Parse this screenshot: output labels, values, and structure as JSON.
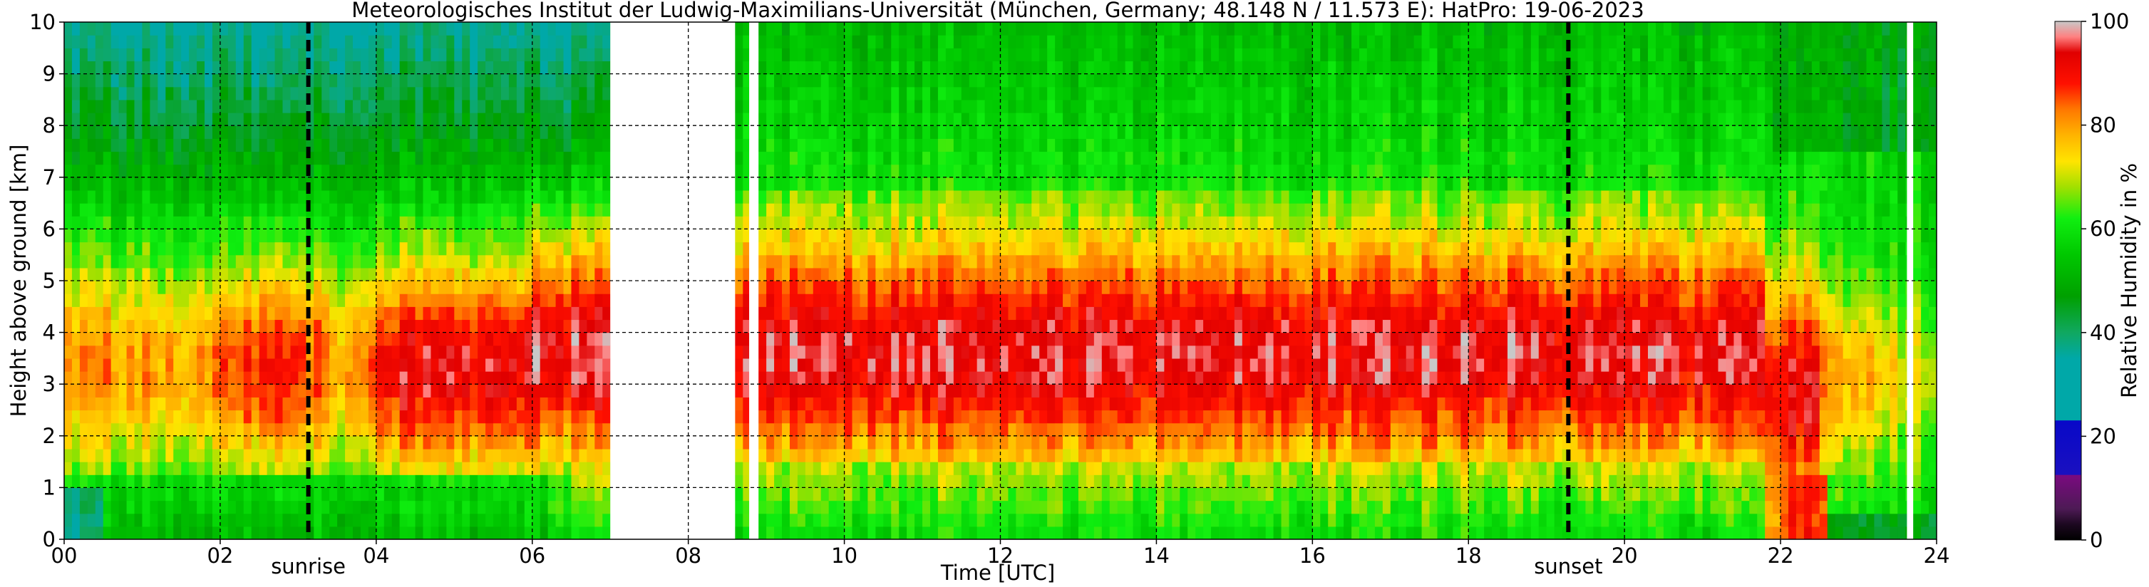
{
  "chart_data": {
    "type": "heatmap",
    "title": "Meteorologisches Institut der Ludwig-Maximilians-Universität (München, Germany; 48.148 N / 11.573 E):    HatPro: 19-06-2023",
    "xlabel": "Time [UTC]",
    "ylabel": "Height above ground [km]",
    "xlim": [
      0,
      24
    ],
    "ylim": [
      0,
      10
    ],
    "x_ticks": [
      {
        "value": 0,
        "label": "00"
      },
      {
        "value": 2,
        "label": "02"
      },
      {
        "value": 4,
        "label": "04"
      },
      {
        "value": 6,
        "label": "06"
      },
      {
        "value": 8,
        "label": "08"
      },
      {
        "value": 10,
        "label": "10"
      },
      {
        "value": 12,
        "label": "12"
      },
      {
        "value": 14,
        "label": "14"
      },
      {
        "value": 16,
        "label": "16"
      },
      {
        "value": 18,
        "label": "18"
      },
      {
        "value": 20,
        "label": "20"
      },
      {
        "value": 22,
        "label": "22"
      },
      {
        "value": 24,
        "label": "24"
      }
    ],
    "y_ticks": [
      0,
      1,
      2,
      3,
      4,
      5,
      6,
      7,
      8,
      9,
      10
    ],
    "grid": true,
    "grid_style": "dashed",
    "annotations": [
      {
        "label": "sunrise",
        "x": 3.13
      },
      {
        "label": "sunset",
        "x": 19.28
      }
    ],
    "data_gaps": [
      [
        7.0,
        8.6
      ],
      [
        8.78,
        8.9
      ],
      [
        23.62,
        23.7
      ]
    ],
    "colorbar": {
      "label": "Relative Humidity in %",
      "range": [
        0,
        100
      ],
      "ticks": [
        0,
        20,
        40,
        60,
        80,
        100
      ],
      "stops": [
        {
          "value": 0,
          "color": "#000000"
        },
        {
          "value": 3,
          "color": "#1c0820"
        },
        {
          "value": 6,
          "color": "#4d1a55"
        },
        {
          "value": 12.5,
          "color": "#7a0a80"
        },
        {
          "value": 12.6,
          "color": "#1a10c0"
        },
        {
          "value": 23,
          "color": "#0808c8"
        },
        {
          "value": 23.1,
          "color": "#00a8a8"
        },
        {
          "value": 35,
          "color": "#00a8a8"
        },
        {
          "value": 40,
          "color": "#10a860"
        },
        {
          "value": 47,
          "color": "#00a000"
        },
        {
          "value": 55,
          "color": "#00c800"
        },
        {
          "value": 62,
          "color": "#10ef10"
        },
        {
          "value": 68,
          "color": "#a0e000"
        },
        {
          "value": 73,
          "color": "#ffe400"
        },
        {
          "value": 78,
          "color": "#ffb400"
        },
        {
          "value": 83,
          "color": "#ff7800"
        },
        {
          "value": 88,
          "color": "#ff1000"
        },
        {
          "value": 94,
          "color": "#e00000"
        },
        {
          "value": 97,
          "color": "#ff8080"
        },
        {
          "value": 100,
          "color": "#c8c8c8"
        }
      ]
    },
    "humidity_profile_by_period": [
      {
        "hours": [
          0,
          7
        ],
        "pattern": "green top, yellow/orange band 2-6 km, red patches 1.3-5 km after 02 UTC, green below 1.5 km"
      },
      {
        "hours": [
          8.6,
          21.8
        ],
        "pattern": "red core 2.5-5 km, yellow/orange 1.5-7 km, green above 7 km and near ground"
      },
      {
        "hours": [
          21.8,
          24
        ],
        "pattern": "red reaching 0.5-5 km at 22-22.5 UTC, dry teal/green surface layer, yellow 2-4 km late"
      }
    ]
  }
}
